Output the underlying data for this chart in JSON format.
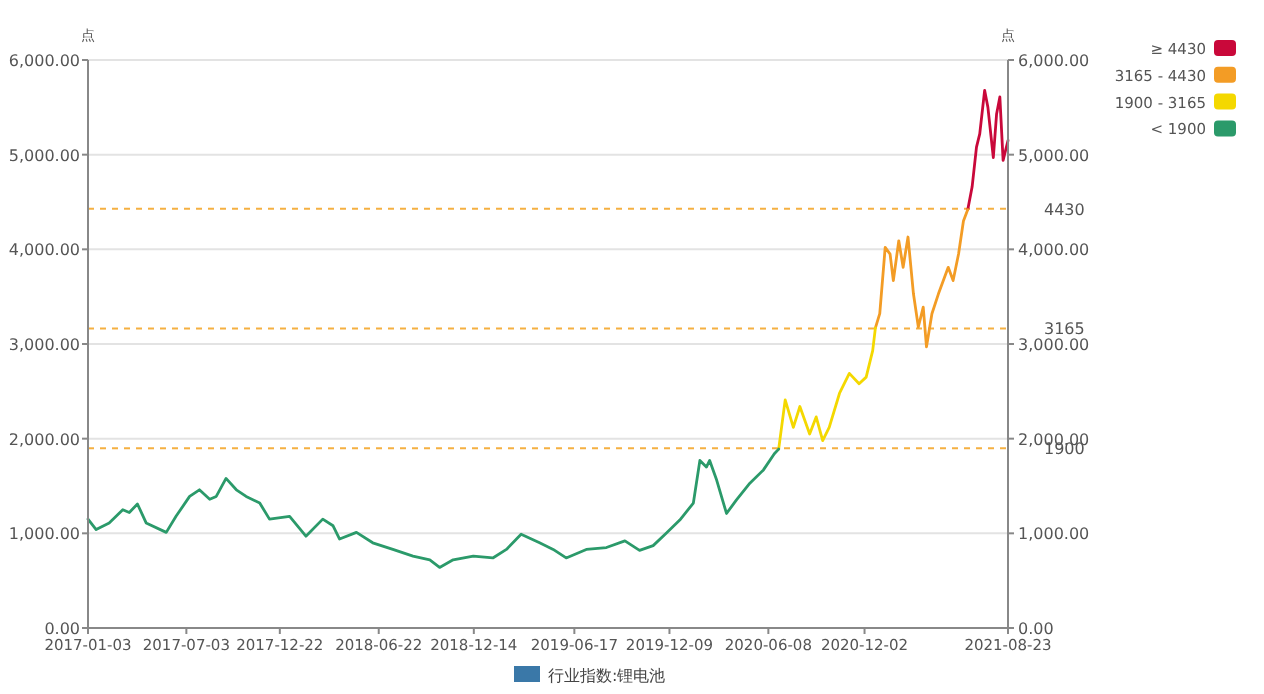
{
  "chart_data": {
    "type": "line",
    "ylabel": "点",
    "y2label": "点",
    "legend_title": "行业指数:锂电池",
    "legend": "right",
    "grid": "y",
    "marker": "none",
    "line_style": "solid",
    "xlim": [
      "2017-01-03",
      "2021-08-23"
    ],
    "xticks": [
      "2017-01-03",
      "2017-07-03",
      "2017-12-22",
      "2018-06-22",
      "2018-12-14",
      "2019-06-17",
      "2019-12-09",
      "2020-06-08",
      "2020-12-02",
      "2021-08-23"
    ],
    "ylim": [
      0,
      6000
    ],
    "yticks": [
      {
        "value": 0,
        "label": "0.00"
      },
      {
        "value": 1000,
        "label": "1,000.00"
      },
      {
        "value": 2000,
        "label": "2,000.00"
      },
      {
        "value": 3000,
        "label": "3,000.00"
      },
      {
        "value": 4000,
        "label": "4,000.00"
      },
      {
        "value": 5000,
        "label": "5,000.00"
      },
      {
        "value": 6000,
        "label": "6,000.00"
      }
    ],
    "y2lim": [
      0,
      6000
    ],
    "y2ticks": [
      {
        "value": 0,
        "label": "0.00"
      },
      {
        "value": 1000,
        "label": "1,000.00"
      },
      {
        "value": 2000,
        "label": "2,000.00"
      },
      {
        "value": 3000,
        "label": "3,000.00"
      },
      {
        "value": 4000,
        "label": "4,000.00"
      },
      {
        "value": 5000,
        "label": "5,000.00"
      },
      {
        "value": 6000,
        "label": "6,000.00"
      }
    ],
    "ref_lines": [
      {
        "axis": "y",
        "value": 4430,
        "label": "4430",
        "color": "#f5b041",
        "line_style": "dashed"
      },
      {
        "axis": "y",
        "value": 3165,
        "label": "3165",
        "color": "#f5b041",
        "line_style": "dashed"
      },
      {
        "axis": "y",
        "value": 1900,
        "label": "1900",
        "color": "#f5b041",
        "line_style": "dashed"
      }
    ],
    "series": [
      {
        "name": "≥ 4430",
        "color": "#c9083a",
        "x": [
          "2021-06-10",
          "2021-06-18",
          "2021-06-26",
          "2021-07-02",
          "2021-07-11",
          "2021-07-17",
          "2021-07-27",
          "2021-08-02",
          "2021-08-08",
          "2021-08-14",
          "2021-08-23"
        ],
        "values": [
          4420,
          4660,
          5080,
          5220,
          5680,
          5500,
          4970,
          5430,
          5610,
          4940,
          5150
        ]
      },
      {
        "name": "3165 - 4430",
        "color": "#f39c25",
        "x": [
          "2020-12-22",
          "2020-12-30",
          "2021-01-09",
          "2021-01-18",
          "2021-01-24",
          "2021-02-03",
          "2021-02-11",
          "2021-02-20",
          "2021-03-02",
          "2021-03-11",
          "2021-03-20",
          "2021-03-26",
          "2021-04-05",
          "2021-04-17",
          "2021-04-26",
          "2021-05-05",
          "2021-05-14",
          "2021-05-24",
          "2021-06-02",
          "2021-06-10"
        ],
        "values": [
          3170,
          3320,
          4020,
          3950,
          3670,
          4090,
          3810,
          4130,
          3530,
          3180,
          3390,
          2970,
          3320,
          3530,
          3670,
          3810,
          3670,
          3950,
          4300,
          4420
        ]
      },
      {
        "name": "1900 - 3165",
        "color": "#f4d800",
        "x": [
          "2020-06-27",
          "2020-07-09",
          "2020-07-24",
          "2020-08-05",
          "2020-08-23",
          "2020-09-04",
          "2020-09-16",
          "2020-09-28",
          "2020-10-17",
          "2020-11-04",
          "2020-11-22",
          "2020-12-05",
          "2020-12-17",
          "2020-12-22"
        ],
        "values": [
          1890,
          2410,
          2120,
          2340,
          2050,
          2230,
          1980,
          2120,
          2480,
          2690,
          2580,
          2650,
          2930,
          3170
        ]
      },
      {
        "name": "< 1900",
        "color": "#2b9a6a",
        "x": [
          "2017-01-03",
          "2017-01-18",
          "2017-02-11",
          "2017-03-08",
          "2017-03-20",
          "2017-04-04",
          "2017-04-20",
          "2017-05-27",
          "2017-06-14",
          "2017-07-09",
          "2017-07-27",
          "2017-08-15",
          "2017-08-27",
          "2017-09-14",
          "2017-10-03",
          "2017-10-21",
          "2017-11-15",
          "2017-12-03",
          "2018-01-09",
          "2018-02-08",
          "2018-03-11",
          "2018-03-30",
          "2018-04-11",
          "2018-05-12",
          "2018-06-11",
          "2018-07-18",
          "2018-08-24",
          "2018-09-24",
          "2018-10-12",
          "2018-11-06",
          "2018-12-13",
          "2019-01-18",
          "2019-02-12",
          "2019-03-11",
          "2019-04-14",
          "2019-05-09",
          "2019-06-02",
          "2019-07-09",
          "2019-08-15",
          "2019-09-18",
          "2019-10-15",
          "2019-11-09",
          "2019-12-03",
          "2019-12-28",
          "2020-01-22",
          "2020-02-03",
          "2020-02-15",
          "2020-02-21",
          "2020-03-05",
          "2020-03-23",
          "2020-04-10",
          "2020-05-05",
          "2020-05-30",
          "2020-06-19",
          "2020-06-27"
        ],
        "values": [
          1150,
          1040,
          1110,
          1250,
          1220,
          1310,
          1110,
          1010,
          1180,
          1390,
          1460,
          1360,
          1390,
          1580,
          1460,
          1390,
          1320,
          1150,
          1180,
          970,
          1150,
          1080,
          940,
          1010,
          900,
          830,
          760,
          720,
          640,
          720,
          760,
          740,
          830,
          990,
          900,
          830,
          740,
          830,
          850,
          920,
          820,
          870,
          1000,
          1140,
          1320,
          1770,
          1700,
          1770,
          1560,
          1210,
          1350,
          1530,
          1670,
          1840,
          1890
        ]
      }
    ]
  }
}
